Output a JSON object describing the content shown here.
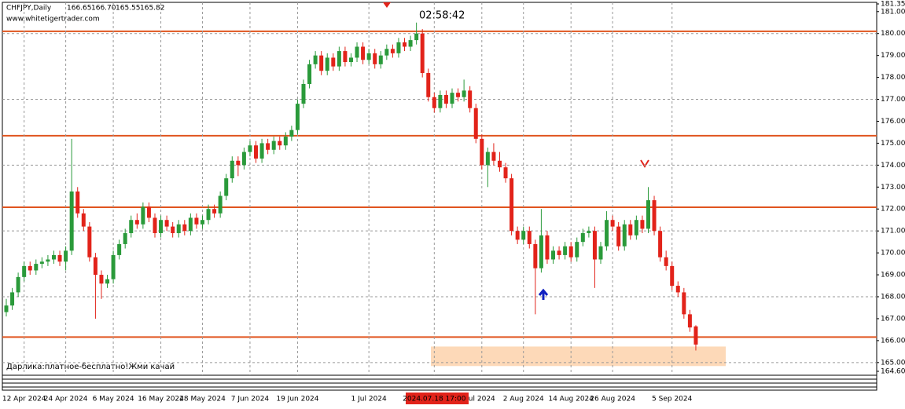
{
  "chart_data": {
    "type": "candlestick",
    "title": "CHFJPY,Daily",
    "ohlc_labels": [
      "166.65",
      "166.70",
      "165.55",
      "165.82"
    ],
    "watermark": "www.whitetigertrader.com",
    "timer": "02:58:42",
    "footer_note": "Дарлика:платное-бесплатно!Жми качай",
    "colors": {
      "up": "#2a9a3a",
      "down": "#e2231a",
      "level": "#e0541e",
      "zone": "#fdd9b8"
    },
    "grid": true,
    "ylim": [
      164.6,
      181.35
    ],
    "yticks": [
      {
        "value": 181.35,
        "label": "181.35"
      },
      {
        "value": 181,
        "label": "181.00"
      },
      {
        "value": 180,
        "label": "180.00"
      },
      {
        "value": 179,
        "label": "179.00"
      },
      {
        "value": 178,
        "label": "178.00"
      },
      {
        "value": 177,
        "label": "177.00"
      },
      {
        "value": 176,
        "label": "176.00"
      },
      {
        "value": 175,
        "label": "175.00"
      },
      {
        "value": 174,
        "label": "174.00"
      },
      {
        "value": 173,
        "label": "173.00"
      },
      {
        "value": 172,
        "label": "172.00"
      },
      {
        "value": 171,
        "label": "171.00"
      },
      {
        "value": 170,
        "label": "170.00"
      },
      {
        "value": 169,
        "label": "169.00"
      },
      {
        "value": 168,
        "label": "168.00"
      },
      {
        "value": 167,
        "label": "167.00"
      },
      {
        "value": 166,
        "label": "166.00"
      },
      {
        "value": 165,
        "label": "165.00"
      },
      {
        "value": 164.6,
        "label": "164.60"
      }
    ],
    "levels": [
      180.1,
      175.34,
      172.08,
      166.16
    ],
    "zone": [
      164.84,
      165.73
    ],
    "categories": [
      null,
      null,
      null,
      "12 Apr 2024",
      null,
      null,
      null,
      null,
      null,
      null,
      "24 Apr 2024",
      null,
      null,
      null,
      null,
      null,
      null,
      null,
      "6 May 2024",
      null,
      null,
      null,
      null,
      null,
      null,
      null,
      "16 May 2024",
      null,
      null,
      null,
      null,
      null,
      null,
      "28 May 2024",
      null,
      null,
      null,
      null,
      null,
      null,
      null,
      "7 Jun 2024",
      null,
      null,
      null,
      null,
      null,
      null,
      null,
      "19 Jun 2024",
      null,
      null,
      null,
      null,
      null,
      null,
      null,
      null,
      null,
      null,
      null,
      "1 Jul 2024",
      null,
      null,
      null,
      null,
      null,
      null,
      null,
      null,
      null,
      null,
      "2024.07.18 17:00",
      null,
      null,
      null,
      null,
      null,
      null,
      null,
      "ul 2024",
      null,
      null,
      null,
      null,
      null,
      null,
      "2 Aug 2024",
      null,
      null,
      null,
      null,
      null,
      null,
      null,
      "14 Aug 2024",
      null,
      null,
      null,
      null,
      null,
      null,
      "26 Aug 2024",
      null,
      null,
      null,
      null,
      null,
      null,
      null,
      null,
      null,
      "5 Sep 2024",
      null,
      null,
      null,
      null
    ],
    "candles": [
      [
        167.3,
        167.9,
        167.1,
        167.6
      ],
      [
        167.6,
        168.4,
        167.4,
        168.2
      ],
      [
        168.2,
        169.1,
        168.0,
        168.9
      ],
      [
        168.9,
        169.6,
        168.7,
        169.4
      ],
      [
        169.4,
        169.6,
        169.0,
        169.2
      ],
      [
        169.2,
        169.7,
        169.0,
        169.5
      ],
      [
        169.5,
        169.8,
        169.3,
        169.6
      ],
      [
        169.6,
        169.9,
        169.4,
        169.7
      ],
      [
        169.7,
        170.1,
        169.5,
        169.9
      ],
      [
        169.9,
        170.1,
        169.4,
        169.6
      ],
      [
        169.6,
        170.3,
        169.2,
        170.1
      ],
      [
        170.1,
        175.2,
        169.9,
        172.8
      ],
      [
        172.8,
        173.0,
        171.6,
        171.8
      ],
      [
        171.8,
        172.0,
        171.0,
        171.2
      ],
      [
        171.2,
        171.4,
        169.6,
        169.8
      ],
      [
        169.8,
        170.0,
        167.0,
        169.0
      ],
      [
        169.0,
        169.2,
        167.9,
        168.6
      ],
      [
        168.6,
        169.0,
        168.4,
        168.8
      ],
      [
        168.8,
        170.1,
        168.6,
        169.9
      ],
      [
        169.9,
        170.6,
        169.7,
        170.4
      ],
      [
        170.4,
        171.1,
        170.2,
        170.9
      ],
      [
        170.9,
        171.7,
        170.7,
        171.5
      ],
      [
        171.5,
        171.8,
        171.1,
        171.3
      ],
      [
        171.3,
        172.3,
        171.1,
        172.1
      ],
      [
        172.1,
        172.3,
        171.4,
        171.6
      ],
      [
        171.6,
        171.8,
        170.7,
        170.9
      ],
      [
        170.9,
        171.7,
        170.7,
        171.5
      ],
      [
        171.5,
        171.7,
        171.0,
        171.2
      ],
      [
        171.2,
        171.4,
        170.7,
        170.9
      ],
      [
        170.9,
        171.5,
        170.7,
        171.3
      ],
      [
        171.3,
        171.5,
        170.8,
        171.0
      ],
      [
        171.0,
        171.8,
        170.8,
        171.6
      ],
      [
        171.6,
        171.8,
        171.1,
        171.3
      ],
      [
        171.3,
        171.7,
        171.1,
        171.5
      ],
      [
        171.5,
        172.2,
        171.3,
        172.0
      ],
      [
        172.0,
        172.2,
        171.6,
        171.8
      ],
      [
        171.8,
        172.8,
        171.6,
        172.6
      ],
      [
        172.6,
        173.6,
        172.4,
        173.4
      ],
      [
        173.4,
        174.4,
        173.2,
        174.2
      ],
      [
        174.2,
        174.4,
        173.5,
        174.0
      ],
      [
        174.0,
        174.8,
        173.8,
        174.6
      ],
      [
        174.6,
        175.1,
        174.4,
        174.9
      ],
      [
        174.9,
        175.1,
        174.1,
        174.3
      ],
      [
        174.3,
        175.2,
        174.1,
        175.0
      ],
      [
        175.0,
        175.2,
        174.5,
        174.7
      ],
      [
        174.7,
        175.3,
        174.5,
        175.1
      ],
      [
        175.1,
        175.3,
        174.7,
        174.9
      ],
      [
        174.9,
        175.5,
        174.7,
        175.3
      ],
      [
        175.3,
        175.8,
        175.1,
        175.6
      ],
      [
        175.6,
        177.0,
        175.4,
        176.8
      ],
      [
        176.8,
        177.9,
        176.6,
        177.7
      ],
      [
        177.7,
        178.8,
        177.5,
        178.6
      ],
      [
        178.6,
        179.2,
        178.4,
        179.0
      ],
      [
        179.0,
        179.2,
        178.1,
        178.3
      ],
      [
        178.3,
        179.1,
        178.1,
        178.9
      ],
      [
        178.9,
        179.1,
        178.3,
        178.5
      ],
      [
        178.5,
        179.4,
        178.3,
        179.2
      ],
      [
        179.2,
        179.4,
        178.5,
        178.7
      ],
      [
        178.7,
        179.1,
        178.5,
        178.9
      ],
      [
        178.9,
        179.6,
        178.7,
        179.4
      ],
      [
        179.4,
        179.6,
        178.6,
        178.8
      ],
      [
        178.8,
        179.3,
        178.6,
        179.1
      ],
      [
        179.1,
        179.3,
        178.4,
        178.6
      ],
      [
        178.6,
        179.2,
        178.4,
        179.0
      ],
      [
        179.0,
        179.5,
        178.8,
        179.3
      ],
      [
        179.3,
        179.5,
        178.9,
        179.1
      ],
      [
        179.1,
        179.8,
        178.9,
        179.6
      ],
      [
        179.6,
        179.8,
        179.2,
        179.4
      ],
      [
        179.4,
        179.9,
        179.2,
        179.7
      ],
      [
        179.7,
        180.5,
        179.5,
        180.0
      ],
      [
        180.0,
        180.2,
        178.0,
        178.2
      ],
      [
        178.2,
        178.4,
        176.9,
        177.1
      ],
      [
        177.1,
        177.3,
        176.4,
        176.6
      ],
      [
        176.6,
        177.4,
        176.4,
        177.2
      ],
      [
        177.2,
        177.4,
        176.6,
        176.8
      ],
      [
        176.8,
        177.5,
        176.6,
        177.3
      ],
      [
        177.3,
        177.5,
        176.9,
        177.1
      ],
      [
        177.1,
        177.9,
        176.9,
        177.4
      ],
      [
        177.4,
        177.6,
        176.4,
        176.6
      ],
      [
        176.6,
        176.8,
        175.0,
        175.2
      ],
      [
        175.2,
        175.4,
        173.8,
        174.0
      ],
      [
        174.0,
        174.8,
        173.0,
        174.6
      ],
      [
        174.6,
        175.0,
        174.0,
        174.2
      ],
      [
        174.2,
        174.6,
        173.7,
        173.9
      ],
      [
        173.9,
        174.1,
        173.2,
        173.4
      ],
      [
        173.4,
        173.6,
        170.8,
        171.0
      ],
      [
        171.0,
        171.2,
        170.4,
        170.6
      ],
      [
        170.6,
        171.2,
        170.4,
        171.0
      ],
      [
        171.0,
        171.2,
        170.2,
        170.4
      ],
      [
        170.4,
        170.6,
        167.2,
        169.3
      ],
      [
        169.3,
        172.0,
        169.1,
        170.8
      ],
      [
        170.8,
        171.0,
        169.5,
        169.7
      ],
      [
        169.7,
        170.3,
        169.5,
        170.1
      ],
      [
        170.1,
        170.3,
        169.7,
        169.9
      ],
      [
        169.9,
        170.5,
        169.7,
        170.3
      ],
      [
        170.3,
        170.5,
        169.6,
        169.8
      ],
      [
        169.8,
        170.7,
        169.6,
        170.5
      ],
      [
        170.5,
        171.1,
        170.3,
        170.9
      ],
      [
        170.9,
        171.2,
        170.7,
        171.0
      ],
      [
        171.0,
        171.2,
        168.4,
        169.7
      ],
      [
        169.7,
        170.5,
        169.5,
        170.3
      ],
      [
        170.3,
        171.9,
        170.1,
        171.5
      ],
      [
        171.5,
        171.7,
        171.0,
        171.2
      ],
      [
        171.2,
        171.4,
        170.1,
        170.3
      ],
      [
        170.3,
        171.5,
        170.1,
        171.3
      ],
      [
        171.3,
        171.5,
        170.6,
        170.8
      ],
      [
        170.8,
        171.7,
        170.6,
        171.5
      ],
      [
        171.5,
        171.7,
        170.9,
        171.1
      ],
      [
        171.1,
        173.0,
        170.9,
        172.4
      ],
      [
        172.4,
        172.6,
        170.8,
        171.0
      ],
      [
        171.0,
        171.2,
        169.6,
        169.8
      ],
      [
        169.8,
        170.1,
        169.2,
        169.4
      ],
      [
        169.4,
        169.6,
        168.3,
        168.5
      ],
      [
        168.5,
        168.7,
        168.0,
        168.2
      ],
      [
        168.2,
        168.4,
        167.0,
        167.2
      ],
      [
        167.2,
        167.4,
        166.4,
        166.6
      ],
      [
        166.65,
        166.7,
        165.55,
        165.82
      ]
    ]
  }
}
